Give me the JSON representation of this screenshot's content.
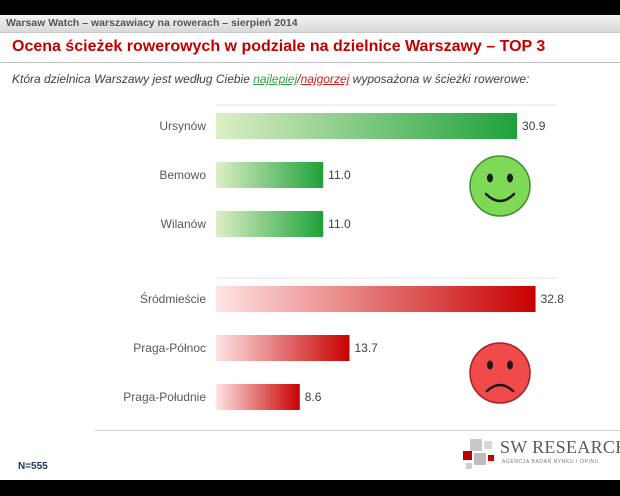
{
  "header": {
    "strip_text": "Warsaw Watch – warszawiacy na rowerach – sierpień 2014"
  },
  "slide": {
    "title": "Ocena ścieżek rowerowych w podziale na dzielnice Warszawy – TOP 3",
    "question_before": "Która dzielnica  Warszawy jest według Ciebie ",
    "question_best": "najlepiej",
    "question_slash": "/",
    "question_worst": "najgorzej",
    "question_after": " wyposażona w ścieżki rowerowe:"
  },
  "chart_data": {
    "type": "bar",
    "orientation": "horizontal",
    "xlim": [
      0,
      35
    ],
    "groups": [
      {
        "sentiment": "best",
        "face": "smiley-face-icon",
        "color_light": "#dcefc6",
        "color_dark": "#1fa13a",
        "categories": [
          "Ursynów",
          "Bemowo",
          "Wilanów"
        ],
        "values": [
          30.9,
          11.0,
          11.0
        ],
        "value_labels": [
          "30.9",
          "11.0",
          "11.0"
        ]
      },
      {
        "sentiment": "worst",
        "face": "sad-face-icon",
        "color_light": "#ffe3e3",
        "color_dark": "#c80000",
        "categories": [
          "Śródmieście",
          "Praga-Północ",
          "Praga-Południe"
        ],
        "values": [
          32.8,
          13.7,
          8.6
        ],
        "value_labels": [
          "32.8",
          "13.7",
          "8.6"
        ]
      }
    ]
  },
  "footer": {
    "n_label": "N=555",
    "logo_name": "SW RESEARCH",
    "logo_sub": "AGENCJA BADAŃ RYNKU I OPINII"
  }
}
